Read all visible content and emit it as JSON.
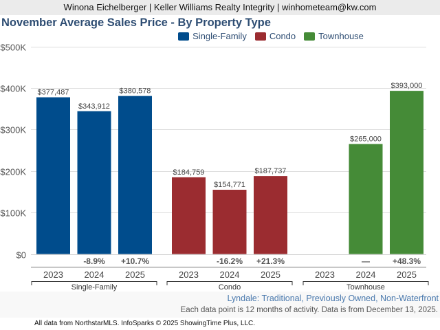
{
  "header": {
    "text": "Winona Eichelberger | Keller Williams Realty Integrity | winhometeam@kw.com"
  },
  "chart_data": {
    "type": "bar",
    "title": "November Average Sales Price - By Property Type",
    "xlabel": "",
    "ylabel": "",
    "ylim": [
      0,
      500000
    ],
    "yticks": [
      {
        "value": 0,
        "label": "$0"
      },
      {
        "value": 100000,
        "label": "$100K"
      },
      {
        "value": 200000,
        "label": "$200K"
      },
      {
        "value": 300000,
        "label": "$300K"
      },
      {
        "value": 400000,
        "label": "$400K"
      },
      {
        "value": 500000,
        "label": "$500K"
      }
    ],
    "grid": true,
    "legend_position": "top-center",
    "categories": [
      "2023",
      "2024",
      "2025"
    ],
    "series": [
      {
        "name": "Single-Family",
        "color": "#004c8c",
        "values": [
          377487,
          343912,
          380578
        ],
        "value_labels": [
          "$377,487",
          "$343,912",
          "$380,578"
        ],
        "changes": [
          "",
          "-8.9%",
          "+10.7%"
        ]
      },
      {
        "name": "Condo",
        "color": "#9b2c30",
        "values": [
          184759,
          154771,
          187737
        ],
        "value_labels": [
          "$184,759",
          "$154,771",
          "$187,737"
        ],
        "changes": [
          "",
          "-16.2%",
          "+21.3%"
        ]
      },
      {
        "name": "Townhouse",
        "color": "#458b37",
        "values": [
          null,
          265000,
          393000
        ],
        "value_labels": [
          "",
          "$265,000",
          "$393,000"
        ],
        "changes": [
          "",
          "—",
          "+48.3%"
        ]
      }
    ]
  },
  "subtitle": "Lyndale: Traditional, Previously Owned, Non-Waterfront",
  "note": "Each data point is 12 months of activity. Data is from December 13, 2025.",
  "footer": "All data from NorthstarMLS. InfoSparks © 2025 ShowingTime Plus, LLC."
}
